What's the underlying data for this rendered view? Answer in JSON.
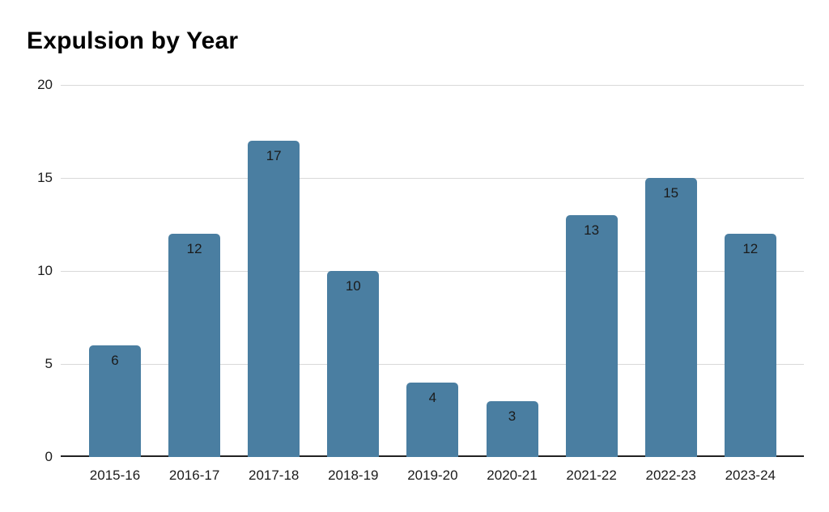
{
  "chart_data": {
    "type": "bar",
    "title": "Expulsion by Year",
    "categories": [
      "2015-16",
      "2016-17",
      "2017-18",
      "2018-19",
      "2019-20",
      "2020-21",
      "2021-22",
      "2022-23",
      "2023-24"
    ],
    "values": [
      6,
      12,
      17,
      10,
      4,
      3,
      13,
      15,
      12
    ],
    "xlabel": "",
    "ylabel": "",
    "ylim": [
      0,
      20
    ],
    "yticks": [
      0,
      5,
      10,
      15,
      20
    ],
    "grid": true,
    "legend": "none",
    "value_labels": "inside-top",
    "colors": {
      "bar": "#4A7EA1",
      "gridline": "#D9D9D9",
      "axis_line": "#212121",
      "tick_text": "#1B1B1B",
      "value_text": "#1B1B1B",
      "title_text": "#000000",
      "background": "#FFFFFF"
    }
  }
}
